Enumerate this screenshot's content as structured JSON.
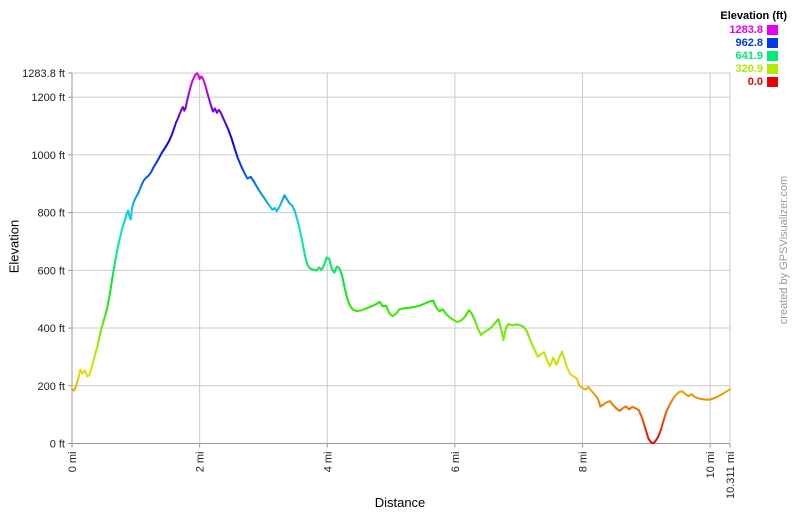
{
  "page": {
    "background": "#ffffff"
  },
  "watermark": {
    "text": "created by GPSVisualizer.com",
    "color": "#999999"
  },
  "legend": {
    "title": "Elevation (ft)",
    "items": [
      {
        "label": "1283.8",
        "color": "#eb00eb"
      },
      {
        "label": "962.8",
        "color": "#003beb"
      },
      {
        "label": "641.9",
        "color": "#00eb75"
      },
      {
        "label": "320.9",
        "color": "#b0eb00"
      },
      {
        "label": "0.0",
        "color": "#eb0000"
      }
    ]
  },
  "chart_data": {
    "type": "line",
    "title": "",
    "xlabel": "Distance",
    "ylabel": "Elevation",
    "xlim": [
      0,
      10.311
    ],
    "ylim": [
      0,
      1283.8
    ],
    "grid": true,
    "grid_color": "#cccccc",
    "axis_color": "#999999",
    "text_color": "#222222",
    "line_width": 2,
    "x_ticks": [
      {
        "value": 0,
        "label": "0 mi"
      },
      {
        "value": 2,
        "label": "2 mi"
      },
      {
        "value": 4,
        "label": "4 mi"
      },
      {
        "value": 6,
        "label": "6 mi"
      },
      {
        "value": 8,
        "label": "8 mi"
      },
      {
        "value": 10,
        "label": "10 mi"
      },
      {
        "value": 10.311,
        "label": "10.311 mi"
      }
    ],
    "y_ticks": [
      {
        "value": 0,
        "label": "0 ft"
      },
      {
        "value": 200,
        "label": "200 ft"
      },
      {
        "value": 400,
        "label": "400 ft"
      },
      {
        "value": 600,
        "label": "600 ft"
      },
      {
        "value": 800,
        "label": "800 ft"
      },
      {
        "value": 1000,
        "label": "1000 ft"
      },
      {
        "value": 1200,
        "label": "1200 ft"
      },
      {
        "value": 1283.8,
        "label": "1283.8 ft"
      }
    ],
    "color_ramp": [
      {
        "offset": 0.0,
        "color": "#eb0000"
      },
      {
        "offset": 0.0625,
        "color": "#eb4900"
      },
      {
        "offset": 0.125,
        "color": "#eb9300"
      },
      {
        "offset": 0.1875,
        "color": "#ebdc00"
      },
      {
        "offset": 0.25,
        "color": "#b0eb00"
      },
      {
        "offset": 0.3125,
        "color": "#67eb00"
      },
      {
        "offset": 0.375,
        "color": "#1deb00"
      },
      {
        "offset": 0.4375,
        "color": "#00eb2c"
      },
      {
        "offset": 0.5,
        "color": "#00eb75"
      },
      {
        "offset": 0.5625,
        "color": "#00ebbf"
      },
      {
        "offset": 0.625,
        "color": "#00cdeb"
      },
      {
        "offset": 0.6875,
        "color": "#0084eb"
      },
      {
        "offset": 0.75,
        "color": "#003beb"
      },
      {
        "offset": 0.8125,
        "color": "#0f00eb"
      },
      {
        "offset": 0.875,
        "color": "#5800eb"
      },
      {
        "offset": 0.9375,
        "color": "#a100eb"
      },
      {
        "offset": 1.0,
        "color": "#eb00eb"
      }
    ],
    "series": [
      {
        "name": "elevation_profile",
        "points": [
          [
            0.0,
            190
          ],
          [
            0.03,
            183
          ],
          [
            0.06,
            196
          ],
          [
            0.1,
            226
          ],
          [
            0.13,
            256
          ],
          [
            0.16,
            243
          ],
          [
            0.2,
            253
          ],
          [
            0.24,
            232
          ],
          [
            0.27,
            236
          ],
          [
            0.31,
            265
          ],
          [
            0.35,
            298
          ],
          [
            0.4,
            338
          ],
          [
            0.45,
            388
          ],
          [
            0.5,
            428
          ],
          [
            0.55,
            468
          ],
          [
            0.59,
            515
          ],
          [
            0.63,
            570
          ],
          [
            0.67,
            625
          ],
          [
            0.71,
            672
          ],
          [
            0.75,
            712
          ],
          [
            0.79,
            748
          ],
          [
            0.83,
            775
          ],
          [
            0.86,
            798
          ],
          [
            0.88,
            807
          ],
          [
            0.9,
            788
          ],
          [
            0.92,
            776
          ],
          [
            0.94,
            815
          ],
          [
            0.97,
            838
          ],
          [
            1.0,
            852
          ],
          [
            1.04,
            868
          ],
          [
            1.08,
            890
          ],
          [
            1.12,
            910
          ],
          [
            1.16,
            921
          ],
          [
            1.2,
            928
          ],
          [
            1.24,
            940
          ],
          [
            1.28,
            958
          ],
          [
            1.32,
            972
          ],
          [
            1.36,
            988
          ],
          [
            1.4,
            1004
          ],
          [
            1.44,
            1018
          ],
          [
            1.48,
            1032
          ],
          [
            1.52,
            1048
          ],
          [
            1.56,
            1068
          ],
          [
            1.6,
            1092
          ],
          [
            1.63,
            1112
          ],
          [
            1.66,
            1126
          ],
          [
            1.69,
            1143
          ],
          [
            1.72,
            1160
          ],
          [
            1.74,
            1166
          ],
          [
            1.76,
            1153
          ],
          [
            1.78,
            1163
          ],
          [
            1.8,
            1185
          ],
          [
            1.83,
            1212
          ],
          [
            1.86,
            1238
          ],
          [
            1.89,
            1258
          ],
          [
            1.92,
            1272
          ],
          [
            1.94,
            1280
          ],
          [
            1.96,
            1283
          ],
          [
            1.98,
            1275
          ],
          [
            2.0,
            1263
          ],
          [
            2.03,
            1272
          ],
          [
            2.06,
            1260
          ],
          [
            2.09,
            1240
          ],
          [
            2.12,
            1215
          ],
          [
            2.15,
            1192
          ],
          [
            2.18,
            1170
          ],
          [
            2.21,
            1150
          ],
          [
            2.24,
            1161
          ],
          [
            2.27,
            1146
          ],
          [
            2.3,
            1156
          ],
          [
            2.33,
            1147
          ],
          [
            2.36,
            1132
          ],
          [
            2.4,
            1112
          ],
          [
            2.45,
            1088
          ],
          [
            2.5,
            1058
          ],
          [
            2.55,
            1022
          ],
          [
            2.6,
            988
          ],
          [
            2.65,
            962
          ],
          [
            2.7,
            938
          ],
          [
            2.75,
            918
          ],
          [
            2.8,
            924
          ],
          [
            2.85,
            908
          ],
          [
            2.9,
            888
          ],
          [
            2.95,
            870
          ],
          [
            3.0,
            855
          ],
          [
            3.05,
            838
          ],
          [
            3.1,
            822
          ],
          [
            3.14,
            810
          ],
          [
            3.18,
            816
          ],
          [
            3.21,
            805
          ],
          [
            3.25,
            820
          ],
          [
            3.29,
            840
          ],
          [
            3.33,
            860
          ],
          [
            3.37,
            845
          ],
          [
            3.41,
            832
          ],
          [
            3.45,
            824
          ],
          [
            3.49,
            806
          ],
          [
            3.53,
            775
          ],
          [
            3.57,
            740
          ],
          [
            3.61,
            698
          ],
          [
            3.65,
            652
          ],
          [
            3.69,
            618
          ],
          [
            3.73,
            606
          ],
          [
            3.78,
            603
          ],
          [
            3.83,
            599
          ],
          [
            3.87,
            610
          ],
          [
            3.91,
            602
          ],
          [
            3.95,
            618
          ],
          [
            3.99,
            645
          ],
          [
            4.03,
            640
          ],
          [
            4.07,
            606
          ],
          [
            4.11,
            592
          ],
          [
            4.15,
            613
          ],
          [
            4.19,
            607
          ],
          [
            4.23,
            585
          ],
          [
            4.27,
            542
          ],
          [
            4.31,
            505
          ],
          [
            4.35,
            480
          ],
          [
            4.4,
            464
          ],
          [
            4.46,
            459
          ],
          [
            4.53,
            461
          ],
          [
            4.6,
            467
          ],
          [
            4.68,
            474
          ],
          [
            4.76,
            482
          ],
          [
            4.82,
            491
          ],
          [
            4.87,
            475
          ],
          [
            4.92,
            478
          ],
          [
            4.97,
            452
          ],
          [
            5.02,
            441
          ],
          [
            5.08,
            450
          ],
          [
            5.13,
            465
          ],
          [
            5.2,
            468
          ],
          [
            5.28,
            470
          ],
          [
            5.36,
            473
          ],
          [
            5.44,
            477
          ],
          [
            5.52,
            484
          ],
          [
            5.6,
            492
          ],
          [
            5.66,
            495
          ],
          [
            5.71,
            470
          ],
          [
            5.76,
            458
          ],
          [
            5.81,
            465
          ],
          [
            5.86,
            449
          ],
          [
            5.92,
            437
          ],
          [
            5.98,
            428
          ],
          [
            6.04,
            421
          ],
          [
            6.1,
            427
          ],
          [
            6.16,
            440
          ],
          [
            6.22,
            462
          ],
          [
            6.26,
            452
          ],
          [
            6.31,
            428
          ],
          [
            6.36,
            398
          ],
          [
            6.41,
            376
          ],
          [
            6.46,
            386
          ],
          [
            6.52,
            394
          ],
          [
            6.58,
            404
          ],
          [
            6.64,
            420
          ],
          [
            6.68,
            431
          ],
          [
            6.73,
            392
          ],
          [
            6.76,
            358
          ],
          [
            6.8,
            400
          ],
          [
            6.84,
            414
          ],
          [
            6.9,
            409
          ],
          [
            6.96,
            413
          ],
          [
            7.02,
            410
          ],
          [
            7.08,
            404
          ],
          [
            7.13,
            388
          ],
          [
            7.18,
            358
          ],
          [
            7.24,
            330
          ],
          [
            7.3,
            300
          ],
          [
            7.35,
            310
          ],
          [
            7.4,
            316
          ],
          [
            7.45,
            285
          ],
          [
            7.49,
            267
          ],
          [
            7.54,
            298
          ],
          [
            7.59,
            272
          ],
          [
            7.64,
            300
          ],
          [
            7.68,
            318
          ],
          [
            7.72,
            290
          ],
          [
            7.76,
            262
          ],
          [
            7.81,
            240
          ],
          [
            7.86,
            232
          ],
          [
            7.91,
            226
          ],
          [
            7.95,
            201
          ],
          [
            8.0,
            192
          ],
          [
            8.05,
            187
          ],
          [
            8.09,
            196
          ],
          [
            8.14,
            182
          ],
          [
            8.19,
            170
          ],
          [
            8.24,
            156
          ],
          [
            8.28,
            128
          ],
          [
            8.33,
            136
          ],
          [
            8.38,
            143
          ],
          [
            8.43,
            147
          ],
          [
            8.48,
            132
          ],
          [
            8.53,
            122
          ],
          [
            8.58,
            113
          ],
          [
            8.63,
            122
          ],
          [
            8.68,
            129
          ],
          [
            8.73,
            118
          ],
          [
            8.78,
            127
          ],
          [
            8.83,
            122
          ],
          [
            8.88,
            116
          ],
          [
            8.93,
            90
          ],
          [
            8.98,
            55
          ],
          [
            9.03,
            18
          ],
          [
            9.07,
            5
          ],
          [
            9.1,
            1
          ],
          [
            9.13,
            5
          ],
          [
            9.16,
            14
          ],
          [
            9.19,
            26
          ],
          [
            9.23,
            48
          ],
          [
            9.27,
            80
          ],
          [
            9.31,
            108
          ],
          [
            9.36,
            132
          ],
          [
            9.41,
            152
          ],
          [
            9.46,
            168
          ],
          [
            9.51,
            178
          ],
          [
            9.56,
            181
          ],
          [
            9.61,
            172
          ],
          [
            9.66,
            164
          ],
          [
            9.71,
            171
          ],
          [
            9.76,
            161
          ],
          [
            9.81,
            157
          ],
          [
            9.87,
            154
          ],
          [
            9.93,
            152
          ],
          [
            10.0,
            152
          ],
          [
            10.06,
            157
          ],
          [
            10.12,
            163
          ],
          [
            10.18,
            170
          ],
          [
            10.25,
            179
          ],
          [
            10.311,
            188
          ]
        ]
      }
    ]
  }
}
